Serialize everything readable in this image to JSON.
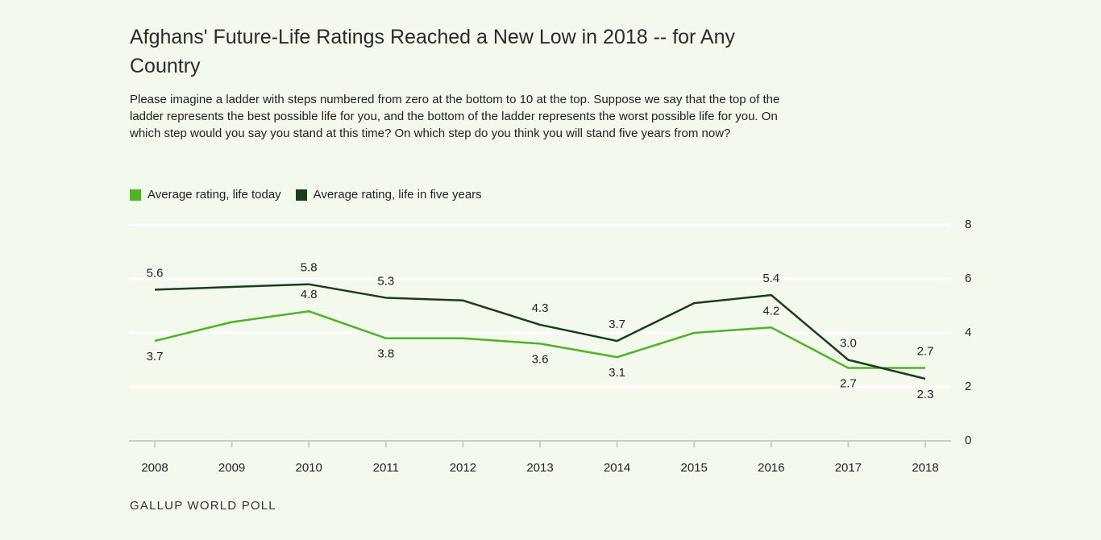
{
  "chart_data": {
    "type": "line",
    "title": "Afghans' Future-Life Ratings Reached a New Low in 2018 -- for Any Country",
    "subtitle": "Please imagine a ladder with steps numbered from zero at the bottom to 10 at the top. Suppose we say that the top of the ladder represents the best possible life for you, and the bottom of the ladder represents the worst possible life for you. On which step would you say you stand at this time? On which step do you think you will stand five years from now?",
    "source": "GALLUP WORLD POLL",
    "categories": [
      "2008",
      "2009",
      "2010",
      "2011",
      "2012",
      "2013",
      "2014",
      "2015",
      "2016",
      "2017",
      "2018"
    ],
    "series": [
      {
        "name": "Average rating, life today",
        "color": "#4cb520",
        "values": [
          3.7,
          4.4,
          4.8,
          3.8,
          3.8,
          3.6,
          3.1,
          4.0,
          4.2,
          2.7,
          2.7
        ],
        "value_labels": [
          "3.7",
          null,
          "4.8",
          "3.8",
          null,
          "3.6",
          "3.1",
          null,
          "4.2",
          "2.7",
          "2.7"
        ]
      },
      {
        "name": "Average rating, life in five years",
        "color": "#1b3d1f",
        "values": [
          5.6,
          5.7,
          5.8,
          5.3,
          5.2,
          4.3,
          3.7,
          5.1,
          5.4,
          3.0,
          2.3
        ],
        "value_labels": [
          "5.6",
          null,
          "5.8",
          "5.3",
          null,
          "4.3",
          "3.7",
          null,
          "5.4",
          "3.0",
          "2.3"
        ]
      }
    ],
    "ylim": [
      0,
      8
    ],
    "yticks": [
      0,
      2,
      4,
      6,
      8
    ],
    "grid": true,
    "legend": "top-left"
  }
}
